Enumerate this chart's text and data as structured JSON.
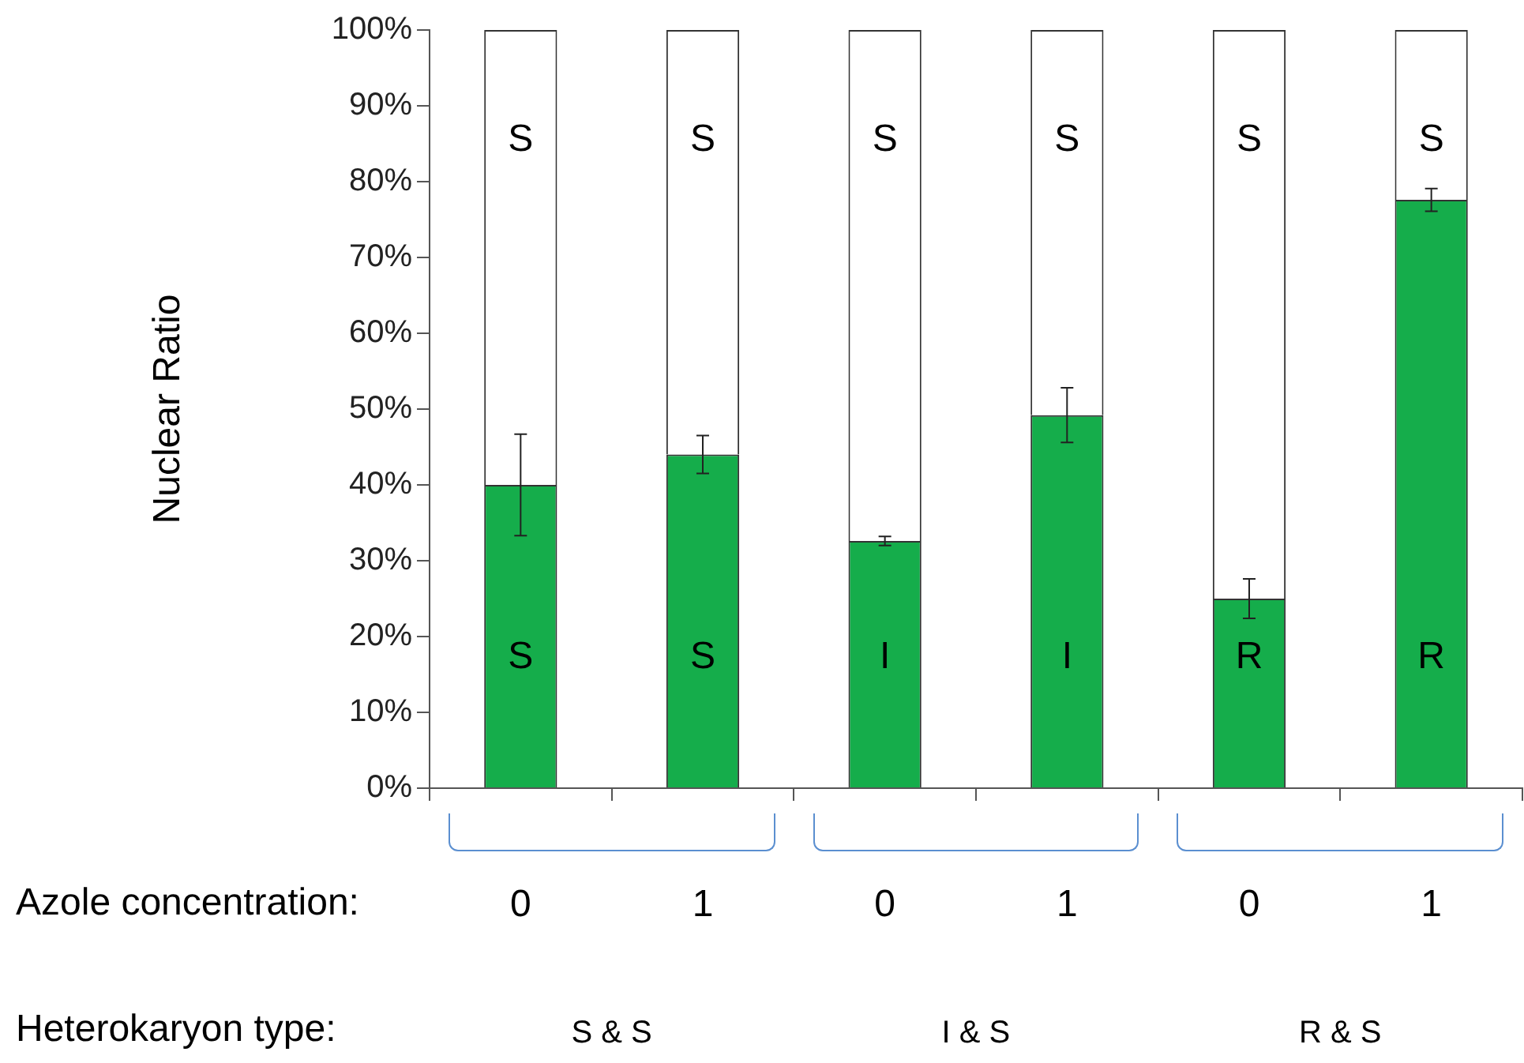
{
  "chart_data": {
    "type": "bar",
    "stacked": true,
    "ylabel": "Nuclear Ratio",
    "xlabel": "Azole concentration:",
    "categories": [
      "0",
      "1",
      "0",
      "1",
      "0",
      "1"
    ],
    "series": [
      {
        "color": "#15ad4b",
        "values": [
          40,
          44,
          32.6,
          49.2,
          25,
          77.6
        ],
        "errors": [
          6.7,
          2.5,
          0.6,
          3.6,
          2.6,
          1.5
        ],
        "value_labels": [
          "S",
          "S",
          "I",
          "I",
          "R",
          "R"
        ]
      },
      {
        "color": "#ffffff",
        "values": [
          60,
          56,
          67.4,
          50.8,
          75,
          22.4
        ],
        "value_labels": [
          "S",
          "S",
          "S",
          "S",
          "S",
          "S"
        ]
      }
    ],
    "ylim": [
      0,
      100
    ],
    "yticks": [
      {
        "value": 0,
        "label": "0%"
      },
      {
        "value": 10,
        "label": "10%"
      },
      {
        "value": 20,
        "label": "20%"
      },
      {
        "value": 30,
        "label": "30%"
      },
      {
        "value": 40,
        "label": "40%"
      },
      {
        "value": 50,
        "label": "50%"
      },
      {
        "value": 60,
        "label": "60%"
      },
      {
        "value": 70,
        "label": "70%"
      },
      {
        "value": 80,
        "label": "80%"
      },
      {
        "value": 90,
        "label": "90%"
      },
      {
        "value": 100,
        "label": "100%"
      }
    ],
    "annotations": [
      "Heterokaryon type:",
      "S & S",
      "I & S",
      "R & S"
    ]
  }
}
